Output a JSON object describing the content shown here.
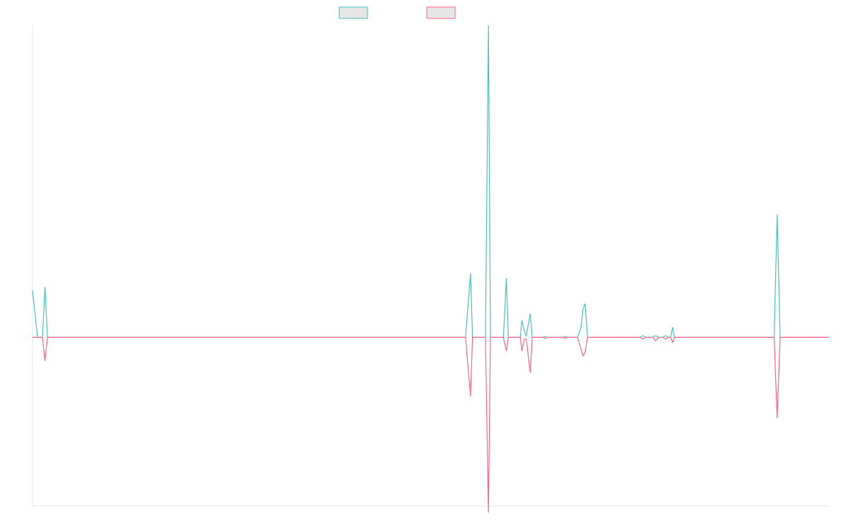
{
  "chart_data": {
    "type": "line",
    "title": "",
    "xlabel": "",
    "ylabel": "",
    "grid": false,
    "legend_placement": "top-center",
    "x_range": [
      0,
      160
    ],
    "ylim": [
      -100,
      185
    ],
    "series": [
      {
        "name": "",
        "color": "#4bc0c0",
        "fill": "#e6e6e6",
        "points": [
          [
            0,
            28
          ],
          [
            1,
            0
          ],
          [
            2,
            0
          ],
          [
            2.5,
            30
          ],
          [
            3,
            0
          ],
          [
            87,
            0
          ],
          [
            88,
            38
          ],
          [
            88.4,
            0
          ],
          [
            89.5,
            0
          ],
          [
            91,
            0
          ],
          [
            91.6,
            185
          ],
          [
            92,
            0
          ],
          [
            94.6,
            0
          ],
          [
            95.2,
            35
          ],
          [
            95.6,
            0
          ],
          [
            96.1,
            0
          ],
          [
            98,
            0
          ],
          [
            98.3,
            10
          ],
          [
            98.8,
            4
          ],
          [
            99.2,
            1
          ],
          [
            100,
            14
          ],
          [
            100.4,
            0
          ],
          [
            102.5,
            0
          ],
          [
            103,
            0.5
          ],
          [
            103.5,
            0
          ],
          [
            106.5,
            0
          ],
          [
            107,
            0.5
          ],
          [
            107.5,
            0
          ],
          [
            109.5,
            0
          ],
          [
            110.2,
            6
          ],
          [
            110.6,
            17
          ],
          [
            111,
            20
          ],
          [
            111.5,
            0
          ],
          [
            122,
            0
          ],
          [
            122.6,
            1
          ],
          [
            123.2,
            0
          ],
          [
            124.6,
            0
          ],
          [
            125.2,
            1
          ],
          [
            125.8,
            0
          ],
          [
            126.6,
            0
          ],
          [
            127.2,
            1
          ],
          [
            127.8,
            0
          ],
          [
            128.2,
            0
          ],
          [
            128.6,
            6
          ],
          [
            129,
            0
          ],
          [
            149,
            0
          ],
          [
            149.6,
            73
          ],
          [
            150.2,
            0
          ],
          [
            160,
            0
          ]
        ]
      },
      {
        "name": "",
        "color": "#ff6384",
        "fill": "#e6e6e6",
        "points": [
          [
            0,
            0
          ],
          [
            1,
            0
          ],
          [
            2,
            0
          ],
          [
            2.5,
            -14
          ],
          [
            3,
            0
          ],
          [
            87,
            0
          ],
          [
            88,
            -35
          ],
          [
            88.4,
            0
          ],
          [
            89.5,
            0
          ],
          [
            91,
            0
          ],
          [
            91.6,
            -104
          ],
          [
            92,
            0
          ],
          [
            94.6,
            0
          ],
          [
            95.2,
            -8
          ],
          [
            95.6,
            0
          ],
          [
            96.1,
            0
          ],
          [
            98,
            0
          ],
          [
            98.3,
            -8
          ],
          [
            98.8,
            -1
          ],
          [
            99.2,
            -1
          ],
          [
            100,
            -21
          ],
          [
            100.4,
            0
          ],
          [
            102.5,
            0
          ],
          [
            103,
            -0.5
          ],
          [
            103.5,
            0
          ],
          [
            106.5,
            0
          ],
          [
            107,
            -0.5
          ],
          [
            107.5,
            0
          ],
          [
            109.5,
            0
          ],
          [
            110.2,
            -7
          ],
          [
            110.6,
            -11
          ],
          [
            111,
            -9
          ],
          [
            111.5,
            0
          ],
          [
            122,
            0
          ],
          [
            122.6,
            -1
          ],
          [
            123.2,
            0
          ],
          [
            124.6,
            0
          ],
          [
            125.2,
            -2
          ],
          [
            125.8,
            0
          ],
          [
            126.6,
            0
          ],
          [
            127.2,
            -1
          ],
          [
            127.8,
            0
          ],
          [
            128.2,
            0
          ],
          [
            128.6,
            -3
          ],
          [
            129,
            0
          ],
          [
            149,
            0
          ],
          [
            149.6,
            -48
          ],
          [
            150.2,
            0
          ],
          [
            160,
            0
          ]
        ]
      }
    ]
  }
}
